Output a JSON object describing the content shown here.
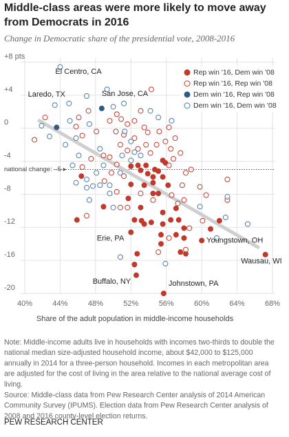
{
  "chart_data": {
    "type": "scatter",
    "title": [
      "Middle-class areas were more likely to move away",
      "from Democrats in 2016"
    ],
    "subtitle": "Change in Democratic share of the presidential vote, 2008-2016",
    "x_label": "Share of the adult population in middle-income households",
    "xlim": [
      40,
      68
    ],
    "ylim": [
      -20,
      8
    ],
    "xticks": [
      {
        "value": 40,
        "label": "40%"
      },
      {
        "value": 44,
        "label": "44%"
      },
      {
        "value": 48,
        "label": "48%"
      },
      {
        "value": 52,
        "label": "52%"
      },
      {
        "value": 56,
        "label": "56%"
      },
      {
        "value": 60,
        "label": "60%"
      },
      {
        "value": 64,
        "label": "64%"
      },
      {
        "value": 68,
        "label": "68%"
      }
    ],
    "yticks": [
      {
        "value": 8,
        "label": "+8 pts"
      },
      {
        "value": 4,
        "label": "+4"
      },
      0,
      -4,
      -8,
      -12,
      -16,
      -20
    ],
    "grid": true,
    "national_change": {
      "value": -5,
      "label": "national change: –5 ▸"
    },
    "trend": {
      "x": [
        41.5,
        66.5
      ],
      "y": [
        1,
        -14.5
      ],
      "color": "#cfcfcf"
    },
    "series": [
      {
        "name": "Rep win '16, Dem win '08",
        "color": "#c0392b",
        "filled": true,
        "x": [
          46.4,
          45.9,
          48.9,
          52,
          52,
          53.1,
          53.7,
          53.9,
          54.5,
          54.7,
          55.6,
          55.9,
          56.2,
          55.1,
          54.5,
          54.5,
          53.5,
          52.8,
          51.7,
          52.4,
          53.1,
          53.2,
          53.5,
          54.3,
          55.6,
          55.6,
          56.5,
          57.1,
          57.4,
          58,
          58,
          57.1,
          55.4,
          55.4,
          55.7,
          52,
          52.4,
          52.6,
          52.7,
          58.2,
          57.6,
          61,
          62,
          60,
          67.2,
          55.6,
          55.1
        ],
        "y": [
          -5.8,
          -11.1,
          -9.5,
          -4.6,
          -6.8,
          -5.1,
          -4.5,
          -5.5,
          -5.9,
          -5,
          -5.9,
          -4.2,
          -6.9,
          -7.9,
          -7.9,
          -6.6,
          -6.9,
          -4.5,
          -8.5,
          -11.1,
          -9.6,
          -11.2,
          -11.6,
          -11.4,
          -10.2,
          -11.6,
          -11.1,
          -9.7,
          -11.1,
          -12.1,
          -13.3,
          -12.9,
          -14,
          -12.9,
          -20,
          -12.6,
          -16.5,
          -17.8,
          -15.2,
          -15.2,
          -15,
          -12.2,
          -11.2,
          -13.6,
          -15.3,
          -3.9,
          -5.2
        ]
      },
      {
        "name": "Rep win '16, Rep win '08",
        "color": "#c0392b",
        "filled": false,
        "x": [
          41.1,
          42.3,
          46.1,
          47.2,
          45.8,
          46.5,
          48.1,
          49.6,
          50.4,
          50.9,
          51.6,
          52.4,
          53.1,
          53.5,
          50.8,
          51.6,
          52.4,
          52.8,
          53.7,
          54.2,
          54.9,
          55.9,
          56.5,
          57,
          57.6,
          56.8,
          49.6,
          50.4,
          49.8,
          51.2,
          49,
          50.4,
          51.6,
          50.8,
          54.5,
          53.1,
          56.6,
          57.8,
          58.2,
          58.8,
          58,
          57.3,
          59.8,
          60.5,
          60.1,
          62.9,
          62.9,
          47,
          46.5,
          47.5,
          48.9,
          55.1,
          58.2,
          58.6,
          56.3,
          54.3,
          53.9,
          55.2,
          56.3,
          50.3,
          51.2,
          56.3
        ],
        "y": [
          -1.4,
          1.3,
          1.3,
          2.1,
          0.2,
          -0.9,
          -0.4,
          0.9,
          1.7,
          1.1,
          0.5,
          0.9,
          2.1,
          0.1,
          -2,
          -2.7,
          -1.2,
          -2.5,
          -2,
          -3,
          -2,
          -1.6,
          -2.5,
          -1.2,
          -3,
          -3.7,
          -3.5,
          -4.4,
          -5.4,
          -5.8,
          -6.4,
          -7.7,
          -9.6,
          -9.6,
          -8.7,
          -7.9,
          -8.1,
          -6.9,
          -5.4,
          -5,
          -8.7,
          -9.1,
          -7.1,
          -8.1,
          -11.2,
          -8.7,
          -6.2,
          -10.6,
          -4.7,
          -3.7,
          -3.3,
          -15,
          -14.7,
          -12.1,
          -13.3,
          4.7,
          -0.5,
          -0.4,
          0.1,
          -0.4,
          -0.8,
          -4.5
        ]
      },
      {
        "name": "Dem win '16, Rep win '08",
        "color": "#2e5c85",
        "filled": true,
        "x": [
          48.7,
          43.6
        ],
        "y": [
          2.4,
          0.1
        ]
      },
      {
        "name": "Dem win '16, Dem win '08",
        "color": "#4a79a8",
        "filled": false,
        "x": [
          44,
          43.4,
          41.9,
          42.8,
          45,
          45.1,
          45.8,
          46.1,
          45.4,
          47,
          47.3,
          47.7,
          48.1,
          48.5,
          48.9,
          49.6,
          50,
          50.8,
          51,
          52,
          52.4,
          53.1,
          52,
          51.2,
          51.3,
          50,
          49.3,
          47,
          47.3,
          44.6,
          45.8,
          47,
          54.2,
          55.1,
          56.6,
          59.8,
          62.9,
          65.2,
          62.7,
          61.7,
          55.9,
          50.8,
          48.5,
          49.6
        ],
        "y": [
          7.4,
          2.8,
          0.3,
          -1,
          3,
          0.9,
          -1.2,
          -3.3,
          -4.5,
          -6.2,
          -8.7,
          -7,
          -5.4,
          -2.5,
          -4.5,
          -7.9,
          -9.6,
          -5.4,
          -3.3,
          -3.9,
          -2.9,
          -3.3,
          -1.6,
          3,
          -0.4,
          2.6,
          4.7,
          3.9,
          0.5,
          -2,
          -6.6,
          -7.2,
          2.1,
          1.3,
          0.9,
          -9.5,
          -8.3,
          -11.6,
          -10.8,
          -13.3,
          -16.4,
          -15.6,
          -6.9,
          -6.9
        ]
      }
    ],
    "annotations": [
      {
        "text": "El Centro, CA",
        "x": 44,
        "y": 7.4
      },
      {
        "text": "Laredo, TX",
        "x": 43.4,
        "y": 2.8
      },
      {
        "text": "San Jose, CA",
        "x": 48.7,
        "y": 2.4
      },
      {
        "text": "Erie, PA",
        "x": 52,
        "y": -12.6
      },
      {
        "text": "Buffalo, NY",
        "x": 52.4,
        "y": -16.5
      },
      {
        "text": "Johnstown, PA",
        "x": 55.7,
        "y": -20
      },
      {
        "text": "Youngstown, OH",
        "x": 60,
        "y": -13.6
      },
      {
        "text": "Wausau, WI",
        "x": 67.2,
        "y": -15.3
      }
    ]
  },
  "notes": [
    "Note: Middle-income adults live in households with incomes two-thirds to double the",
    "national median size-adjusted household income, about $42,000 to $125,000",
    "annually in 2014 for a three-person household. Incomes in each metropolitan area",
    "are adjusted for the cost of living in the area relative to the national average cost of",
    "living.",
    "Source: Middle-class data from Pew Research Center analysis of 2014 American",
    "Community Survey (IPUMS). Election data from Pew Research Center analysis of",
    "2008 and 2016 county-level election returns."
  ],
  "footer": "PEW RESEARCH CENTER"
}
